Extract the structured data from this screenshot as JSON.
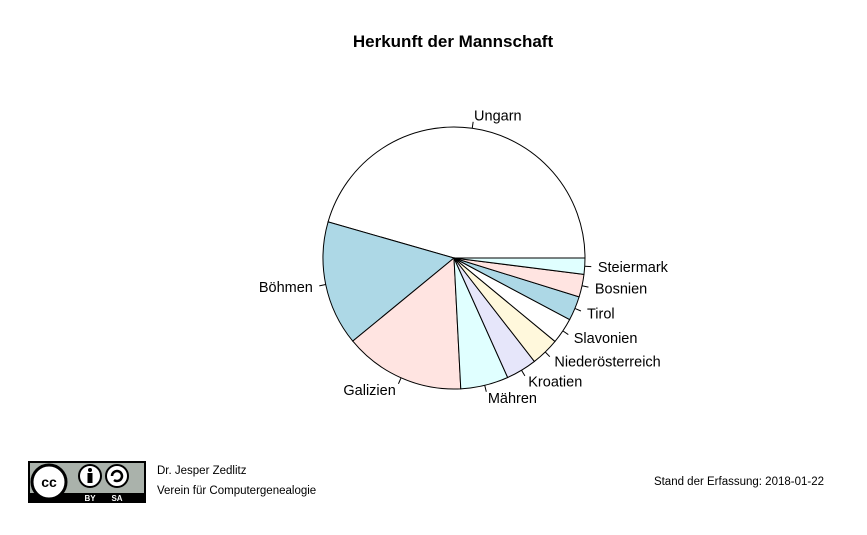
{
  "chart_data": {
    "type": "pie",
    "title": "Herkunft der Mannschaft",
    "unit": "percent (estimated)",
    "direction": "counterclockwise from 3 o'clock",
    "slices": [
      {
        "label": "Ungarn",
        "value": 45.6,
        "color": "#FFFFFF"
      },
      {
        "label": "Böhmen",
        "value": 15.4,
        "color": "#ADD8E6"
      },
      {
        "label": "Galizien",
        "value": 14.9,
        "color": "#FFE4E1"
      },
      {
        "label": "Mähren",
        "value": 5.9,
        "color": "#E0FFFF"
      },
      {
        "label": "Kroatien",
        "value": 3.8,
        "color": "#E6E6FA"
      },
      {
        "label": "Niederösterreich",
        "value": 3.5,
        "color": "#FFF8DC"
      },
      {
        "label": "Slavonien",
        "value": 3.2,
        "color": "#FFFFFF"
      },
      {
        "label": "Tirol",
        "value": 3.0,
        "color": "#ADD8E6"
      },
      {
        "label": "Bosnien",
        "value": 2.8,
        "color": "#FFE4E1"
      },
      {
        "label": "Steiermark",
        "value": 2.0,
        "color": "#E0FFFF"
      }
    ]
  },
  "footer": {
    "author": "Dr. Jesper Zedlitz",
    "organization": "Verein für Computergenealogie",
    "date_text": "Stand der Erfassung: 2018-01-22",
    "license_logo": {
      "cc": "cc",
      "by": "BY",
      "sa": "SA"
    }
  }
}
